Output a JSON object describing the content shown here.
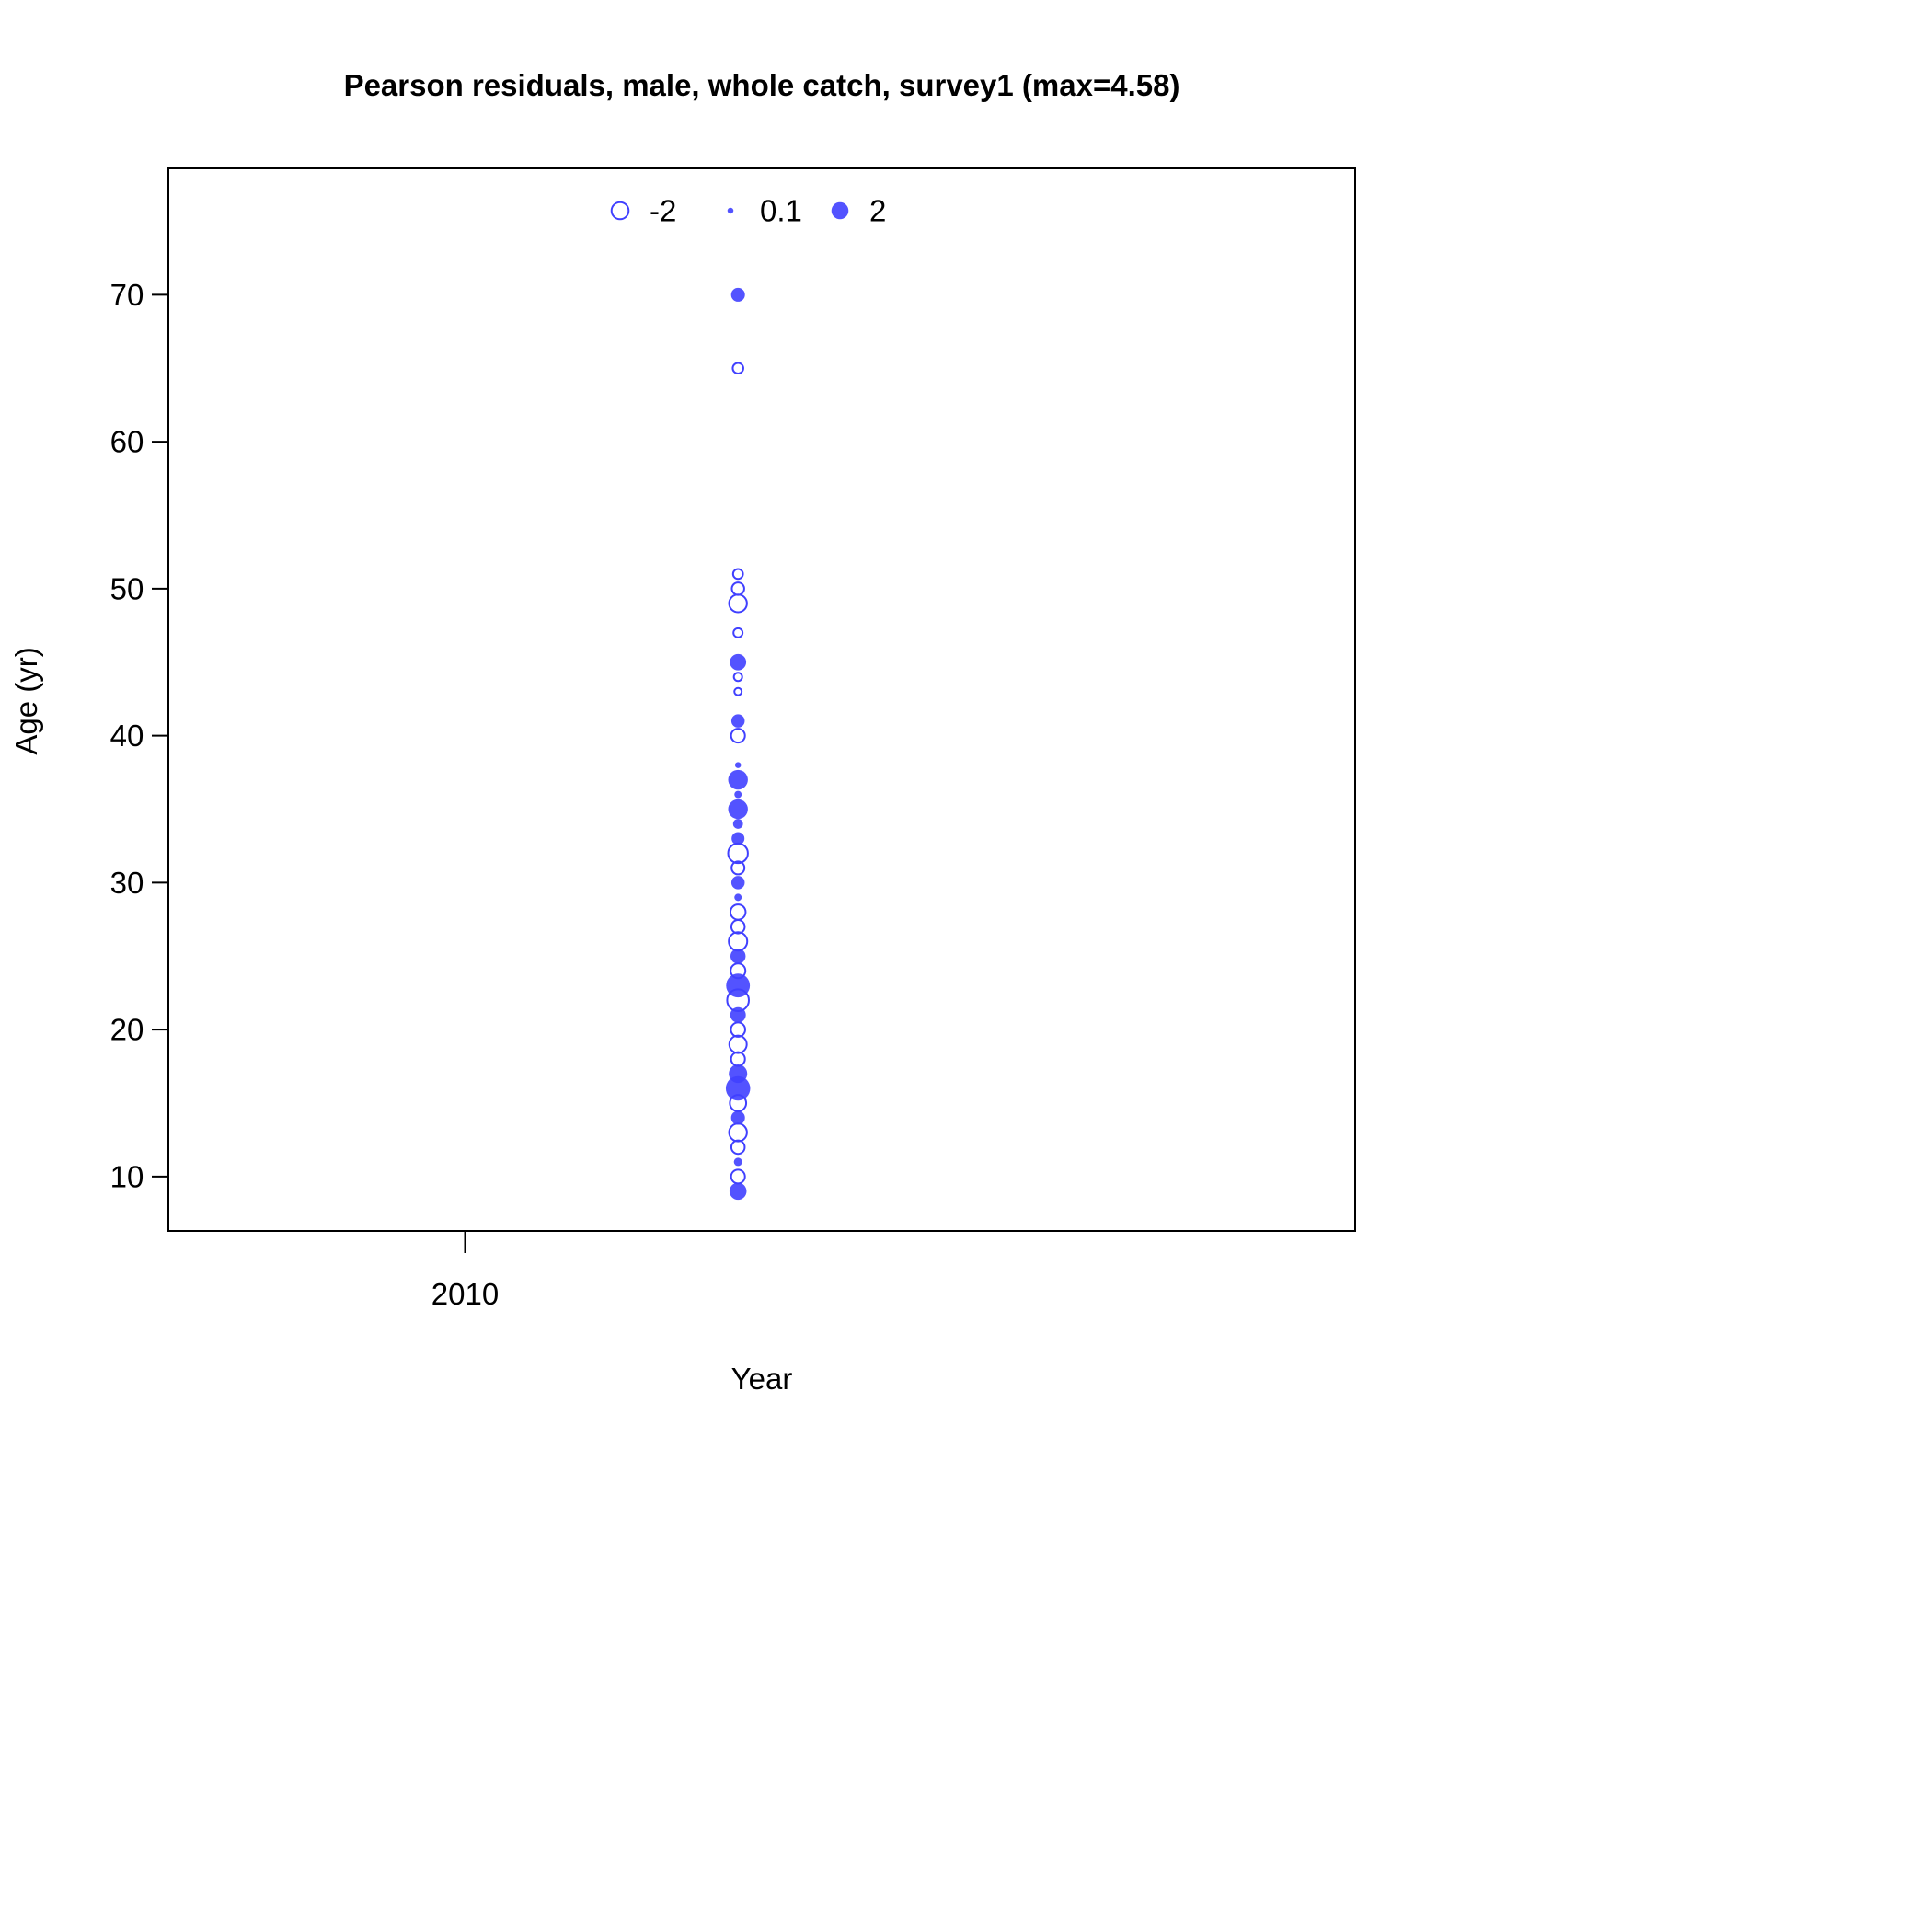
{
  "chart_data": {
    "type": "scatter",
    "subtype": "bubble",
    "title": "Pearson residuals, male, whole catch, survey1 (max=4.58)",
    "xlabel": "Year",
    "ylabel": "Age (yr)",
    "xlim": [
      2009.5,
      2011.5
    ],
    "ylim": [
      6.3,
      78.6
    ],
    "x_ticks": [
      2010
    ],
    "y_ticks": [
      10,
      20,
      30,
      40,
      50,
      60,
      70
    ],
    "grid": false,
    "color": "#4040ff",
    "fill_opacity": 0.9,
    "legend": {
      "placement": "top-center",
      "entries": [
        {
          "label": "-2",
          "value": -2
        },
        {
          "label": "0.1",
          "value": 0.1
        },
        {
          "label": "2",
          "value": 2
        }
      ]
    },
    "points": [
      {
        "year": 2010.46,
        "age": 9,
        "residual": 2.0
      },
      {
        "year": 2010.46,
        "age": 10,
        "residual": -1.2
      },
      {
        "year": 2010.46,
        "age": 11,
        "residual": 0.3
      },
      {
        "year": 2010.46,
        "age": 12,
        "residual": -1.1
      },
      {
        "year": 2010.46,
        "age": 13,
        "residual": -2.2
      },
      {
        "year": 2010.46,
        "age": 14,
        "residual": 1.2
      },
      {
        "year": 2010.46,
        "age": 15,
        "residual": -1.8
      },
      {
        "year": 2010.46,
        "age": 16,
        "residual": 4.58
      },
      {
        "year": 2010.46,
        "age": 17,
        "residual": 2.4
      },
      {
        "year": 2010.46,
        "age": 18,
        "residual": -1.2
      },
      {
        "year": 2010.46,
        "age": 19,
        "residual": -2.1
      },
      {
        "year": 2010.46,
        "age": 20,
        "residual": -1.3
      },
      {
        "year": 2010.46,
        "age": 21,
        "residual": 1.6
      },
      {
        "year": 2010.46,
        "age": 22,
        "residual": -3.5
      },
      {
        "year": 2010.46,
        "age": 23,
        "residual": 4.3
      },
      {
        "year": 2010.46,
        "age": 24,
        "residual": -1.4
      },
      {
        "year": 2010.46,
        "age": 25,
        "residual": 1.5
      },
      {
        "year": 2010.46,
        "age": 26,
        "residual": -2.4
      },
      {
        "year": 2010.46,
        "age": 27,
        "residual": -1.1
      },
      {
        "year": 2010.46,
        "age": 28,
        "residual": -1.5
      },
      {
        "year": 2010.46,
        "age": 29,
        "residual": 0.2
      },
      {
        "year": 2010.46,
        "age": 30,
        "residual": 1.1
      },
      {
        "year": 2010.46,
        "age": 31,
        "residual": -1.0
      },
      {
        "year": 2010.46,
        "age": 32,
        "residual": -2.8
      },
      {
        "year": 2010.46,
        "age": 33,
        "residual": 1.0
      },
      {
        "year": 2010.46,
        "age": 34,
        "residual": 0.5
      },
      {
        "year": 2010.46,
        "age": 35,
        "residual": 2.8
      },
      {
        "year": 2010.46,
        "age": 36,
        "residual": 0.2
      },
      {
        "year": 2010.46,
        "age": 37,
        "residual": 2.8
      },
      {
        "year": 2010.46,
        "age": 38,
        "residual": 0.1
      },
      {
        "year": 2010.46,
        "age": 40,
        "residual": -1.2
      },
      {
        "year": 2010.46,
        "age": 41,
        "residual": 1.1
      },
      {
        "year": 2010.46,
        "age": 43,
        "residual": -0.2
      },
      {
        "year": 2010.46,
        "age": 44,
        "residual": -0.3
      },
      {
        "year": 2010.46,
        "age": 45,
        "residual": 1.8
      },
      {
        "year": 2010.46,
        "age": 47,
        "residual": -0.4
      },
      {
        "year": 2010.46,
        "age": 49,
        "residual": -2.2
      },
      {
        "year": 2010.46,
        "age": 50,
        "residual": -0.9
      },
      {
        "year": 2010.46,
        "age": 51,
        "residual": -0.5
      },
      {
        "year": 2010.46,
        "age": 65,
        "residual": -0.6
      },
      {
        "year": 2010.46,
        "age": 70,
        "residual": 1.2
      }
    ]
  }
}
